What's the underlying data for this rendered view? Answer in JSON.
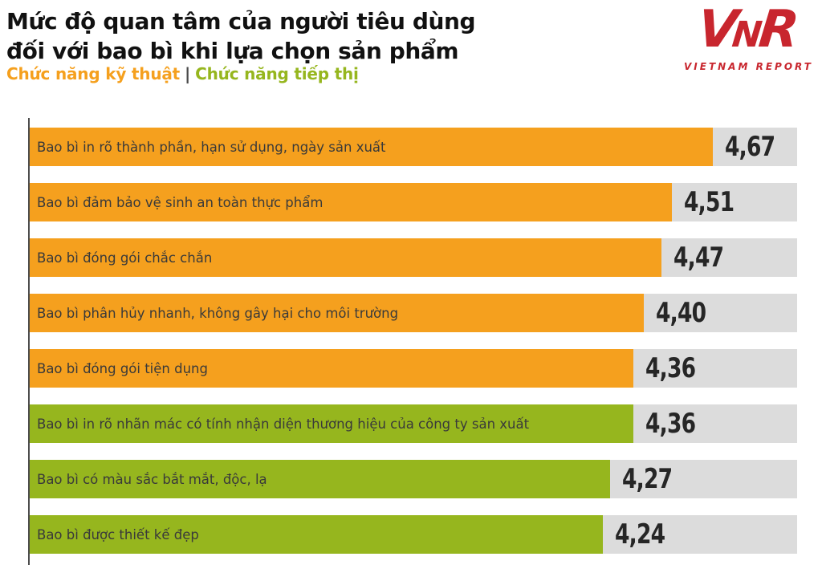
{
  "header": {
    "title_line1": "Mức độ quan tâm của người tiêu dùng",
    "title_line2": "đối với bao bì khi lựa chọn sản phẩm",
    "legend_separator": "|",
    "legend_items": [
      {
        "key": "technical",
        "label": "Chức năng kỹ thuật",
        "color": "#f5a01e"
      },
      {
        "key": "marketing",
        "label": "Chức năng tiếp thị",
        "color": "#96b61e"
      }
    ]
  },
  "logo": {
    "mark_v": "V",
    "mark_n": "N",
    "mark_r": "R",
    "subtext": "VIETNAM REPORT",
    "color": "#c8262e"
  },
  "chart_data": {
    "type": "bar",
    "orientation": "horizontal",
    "title": "Mức độ quan tâm của người tiêu dùng đối với bao bì khi lựa chọn sản phẩm",
    "xlim": [
      2,
      5
    ],
    "grid": false,
    "legend_position": "top-left",
    "track_color": "#dcdcdc",
    "colors": {
      "technical": "#f5a01e",
      "marketing": "#96b61e"
    },
    "categories": [
      "Bao bì in rõ thành phần, hạn sử dụng, ngày sản xuất",
      "Bao bì đảm bảo vệ sinh an toàn thực phẩm",
      "Bao bì đóng gói chắc chắn",
      "Bao bì phân hủy nhanh, không gây hại cho môi trường",
      "Bao bì đóng gói tiện dụng",
      "Bao bì in rõ nhãn mác có tính nhận diện thương hiệu của công ty sản xuất",
      "Bao bì có màu sắc bắt mắt, độc, lạ",
      "Bao bì được thiết kế đẹp"
    ],
    "values": [
      4.67,
      4.51,
      4.47,
      4.4,
      4.36,
      4.36,
      4.27,
      4.24
    ],
    "value_labels": [
      "4,67",
      "4,51",
      "4,47",
      "4,40",
      "4,36",
      "4,36",
      "4,27",
      "4,24"
    ],
    "series_keys": [
      "technical",
      "technical",
      "technical",
      "technical",
      "technical",
      "marketing",
      "marketing",
      "marketing"
    ]
  }
}
